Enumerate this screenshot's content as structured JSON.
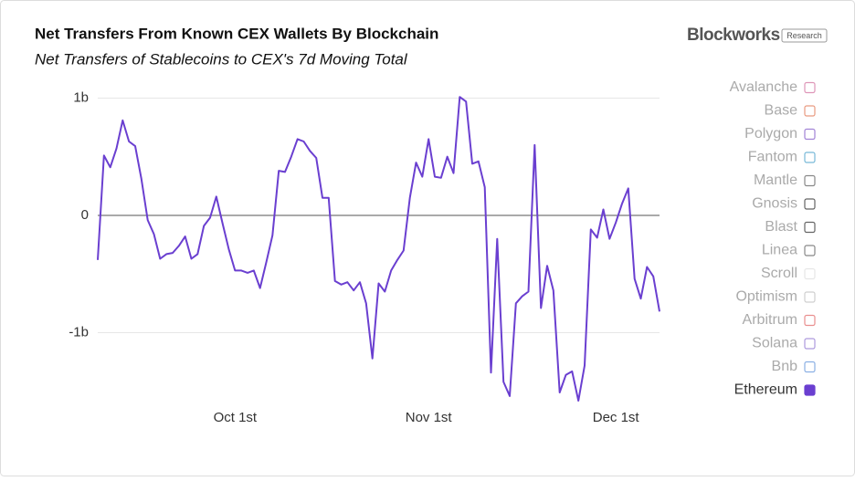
{
  "chart_data": {
    "type": "line",
    "title": "Net Transfers From Known CEX Wallets By Blockchain",
    "subtitle": "Net Transfers of Stablecoins to CEX's 7d Moving Total",
    "brand": "Blockworks",
    "badge": "Research",
    "categories": [
      null,
      null,
      null,
      null,
      null,
      null,
      null,
      null,
      null,
      null,
      null,
      null,
      null,
      null,
      null,
      null,
      null,
      null,
      null,
      null,
      null,
      null,
      "Oct 1st",
      null,
      null,
      null,
      null,
      null,
      null,
      null,
      null,
      null,
      null,
      null,
      null,
      null,
      null,
      null,
      null,
      null,
      null,
      null,
      null,
      null,
      null,
      null,
      null,
      null,
      null,
      null,
      null,
      null,
      null,
      "Nov 1st",
      null,
      null,
      null,
      null,
      null,
      null,
      null,
      null,
      null,
      null,
      null,
      null,
      null,
      null,
      null,
      null,
      null,
      null,
      null,
      null,
      null,
      null,
      null,
      null,
      null,
      null,
      null,
      null,
      null,
      "Dec 1st",
      null,
      null,
      null,
      null,
      null,
      null,
      null
    ],
    "series": [
      {
        "name": "Ethereum",
        "color": "#6a3fd0",
        "values": [
          -0.38,
          0.51,
          0.41,
          0.57,
          0.81,
          0.63,
          0.59,
          0.31,
          -0.04,
          -0.16,
          -0.37,
          -0.33,
          -0.32,
          -0.26,
          -0.18,
          -0.37,
          -0.33,
          -0.09,
          -0.02,
          0.16,
          -0.07,
          -0.29,
          -0.47,
          -0.47,
          -0.49,
          -0.47,
          -0.62,
          -0.4,
          -0.17,
          0.38,
          0.37,
          0.5,
          0.65,
          0.63,
          0.55,
          0.49,
          0.15,
          0.15,
          -0.56,
          -0.59,
          -0.57,
          -0.64,
          -0.57,
          -0.75,
          -1.22,
          -0.58,
          -0.65,
          -0.47,
          -0.38,
          -0.3,
          0.15,
          0.45,
          0.33,
          0.65,
          0.33,
          0.32,
          0.5,
          0.36,
          1.01,
          0.97,
          0.44,
          0.46,
          0.24,
          -1.34,
          -0.2,
          -1.42,
          -1.54,
          -0.75,
          -0.69,
          -0.65,
          0.6,
          -0.79,
          -0.43,
          -0.64,
          -1.51,
          -1.36,
          -1.33,
          -1.58,
          -1.28,
          -0.12,
          -0.19,
          0.05,
          -0.2,
          -0.06,
          0.1,
          0.23,
          -0.54,
          -0.71,
          -0.44,
          -0.52,
          -0.82
        ]
      }
    ],
    "legend_entries": [
      {
        "name": "Avalanche",
        "color": "#d06a9a"
      },
      {
        "name": "Base",
        "color": "#e0704c"
      },
      {
        "name": "Polygon",
        "color": "#7a4fc5"
      },
      {
        "name": "Fantom",
        "color": "#3f9bc7"
      },
      {
        "name": "Mantle",
        "color": "#555555"
      },
      {
        "name": "Gnosis",
        "color": "#222222"
      },
      {
        "name": "Blast",
        "color": "#222222"
      },
      {
        "name": "Linea",
        "color": "#555555"
      },
      {
        "name": "Scroll",
        "color": "#dddddd"
      },
      {
        "name": "Optimism",
        "color": "#bbbbbb"
      },
      {
        "name": "Arbitrum",
        "color": "#e06060"
      },
      {
        "name": "Solana",
        "color": "#8a6fd0"
      },
      {
        "name": "Bnb",
        "color": "#5a8fd8"
      },
      {
        "name": "Ethereum",
        "color": "#6a3fd0",
        "active": true
      }
    ],
    "legend_position": "right",
    "ylim": [
      -1.65,
      1.1
    ],
    "yticks": [
      {
        "value": 1,
        "label": "1b"
      },
      0,
      {
        "value": -1,
        "label": "-1b"
      }
    ],
    "grid": true
  }
}
